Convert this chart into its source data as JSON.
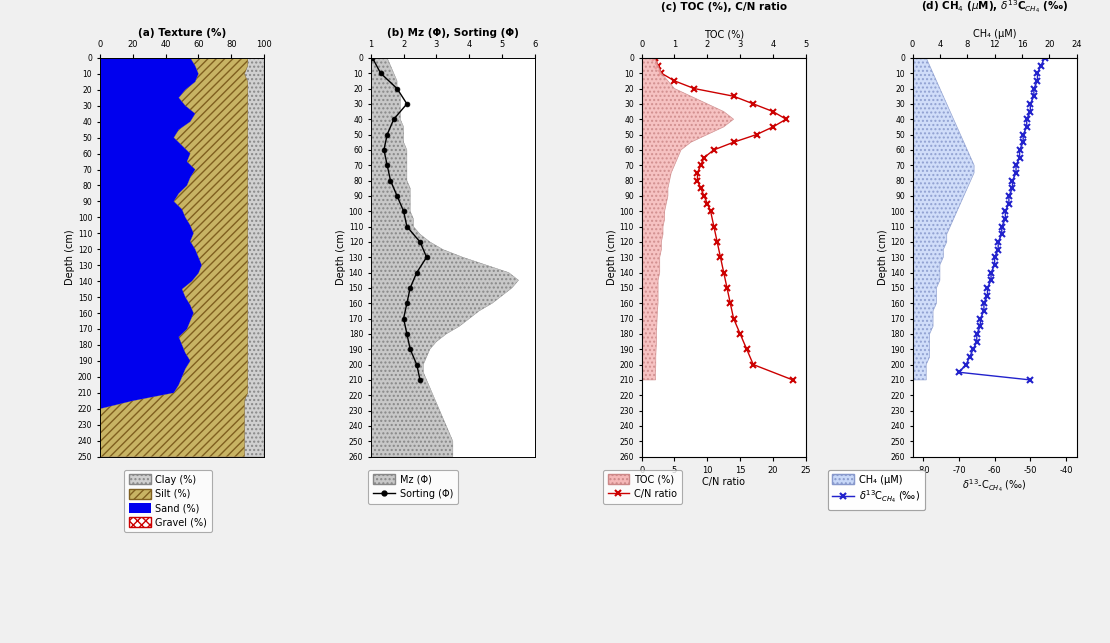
{
  "panel_a": {
    "title": "(a) Texture (%)",
    "depth_max": 250,
    "depth_ticks": [
      0,
      10,
      20,
      30,
      40,
      50,
      60,
      70,
      80,
      90,
      100,
      110,
      120,
      130,
      140,
      150,
      160,
      170,
      180,
      190,
      200,
      210,
      220,
      230,
      240,
      250
    ],
    "xlim": [
      0,
      100
    ],
    "xticks": [
      0,
      20,
      40,
      60,
      80,
      100
    ],
    "depth": [
      0,
      5,
      10,
      15,
      20,
      25,
      30,
      35,
      40,
      45,
      50,
      55,
      60,
      65,
      70,
      75,
      80,
      85,
      90,
      95,
      100,
      105,
      110,
      115,
      120,
      125,
      130,
      135,
      140,
      145,
      150,
      155,
      160,
      165,
      170,
      175,
      180,
      185,
      190,
      195,
      200,
      205,
      210,
      215,
      220,
      225,
      230,
      235,
      240,
      245,
      250
    ],
    "sand": [
      55,
      58,
      60,
      58,
      52,
      48,
      52,
      58,
      55,
      48,
      45,
      50,
      55,
      53,
      58,
      55,
      53,
      48,
      45,
      50,
      52,
      55,
      57,
      55,
      58,
      60,
      62,
      60,
      56,
      50,
      52,
      55,
      57,
      55,
      53,
      48,
      50,
      52,
      55,
      52,
      50,
      48,
      45,
      20,
      0,
      0,
      0,
      0,
      0,
      0,
      0
    ],
    "silt": [
      35,
      32,
      28,
      32,
      38,
      42,
      38,
      32,
      35,
      42,
      45,
      40,
      35,
      37,
      32,
      35,
      37,
      42,
      45,
      40,
      38,
      35,
      33,
      35,
      32,
      30,
      28,
      30,
      34,
      40,
      38,
      35,
      33,
      35,
      37,
      42,
      40,
      38,
      35,
      38,
      40,
      42,
      45,
      68,
      88,
      88,
      88,
      88,
      88,
      88,
      88
    ],
    "clay": [
      10,
      10,
      12,
      10,
      10,
      10,
      10,
      10,
      10,
      10,
      10,
      10,
      10,
      10,
      10,
      10,
      10,
      10,
      10,
      10,
      10,
      10,
      10,
      10,
      10,
      10,
      10,
      10,
      10,
      10,
      10,
      10,
      10,
      10,
      10,
      10,
      10,
      10,
      10,
      10,
      10,
      10,
      10,
      12,
      12,
      12,
      12,
      12,
      12,
      12,
      12
    ],
    "gravel": [
      0,
      0,
      0,
      0,
      0,
      0,
      0,
      0,
      0,
      0,
      0,
      0,
      0,
      0,
      0,
      0,
      0,
      0,
      0,
      0,
      0,
      0,
      0,
      0,
      0,
      0,
      0,
      0,
      0,
      0,
      0,
      0,
      0,
      0,
      0,
      0,
      0,
      0,
      0,
      0,
      0,
      0,
      0,
      0,
      0,
      0,
      0,
      0,
      0,
      0,
      0
    ],
    "sand_color": "#0000ee",
    "silt_color": "#c8b464",
    "clay_color": "#d0d0d0",
    "gravel_color": "#ffaaaa"
  },
  "panel_b": {
    "title": "(b) Mz (Φ), Sorting (Φ)",
    "depth_max": 260,
    "depth_ticks": [
      0,
      10,
      20,
      30,
      40,
      50,
      60,
      70,
      80,
      90,
      100,
      110,
      120,
      130,
      140,
      150,
      160,
      170,
      180,
      190,
      200,
      210,
      220,
      230,
      240,
      250,
      260
    ],
    "xlim": [
      1,
      6
    ],
    "xticks": [
      1,
      2,
      3,
      4,
      5,
      6
    ],
    "mz_depth": [
      0,
      5,
      10,
      15,
      20,
      25,
      30,
      35,
      40,
      45,
      50,
      55,
      60,
      65,
      70,
      75,
      80,
      85,
      90,
      95,
      100,
      105,
      110,
      115,
      120,
      125,
      130,
      135,
      140,
      145,
      150,
      155,
      160,
      165,
      170,
      175,
      180,
      185,
      190,
      195,
      200,
      205,
      210,
      215,
      220,
      225,
      230,
      235,
      240,
      245,
      250,
      255,
      260
    ],
    "mz": [
      1.5,
      1.6,
      1.7,
      1.8,
      1.8,
      1.9,
      1.9,
      1.9,
      1.9,
      2.0,
      2.0,
      2.0,
      2.1,
      2.1,
      2.1,
      2.1,
      2.1,
      2.2,
      2.2,
      2.2,
      2.2,
      2.3,
      2.3,
      2.5,
      2.8,
      3.2,
      3.8,
      4.5,
      5.2,
      5.5,
      5.3,
      5.0,
      4.7,
      4.3,
      4.0,
      3.7,
      3.3,
      3.0,
      2.8,
      2.7,
      2.6,
      2.6,
      2.7,
      2.8,
      2.9,
      3.0,
      3.1,
      3.2,
      3.3,
      3.4,
      3.5,
      3.5,
      3.5
    ],
    "sorting_depth": [
      0,
      10,
      20,
      30,
      40,
      50,
      60,
      70,
      80,
      90,
      100,
      110,
      120,
      130,
      140,
      150,
      160,
      170,
      180,
      190,
      200,
      210
    ],
    "sorting": [
      1.05,
      1.3,
      1.8,
      2.1,
      1.7,
      1.5,
      1.4,
      1.5,
      1.6,
      1.8,
      2.0,
      2.1,
      2.5,
      2.7,
      2.4,
      2.2,
      2.1,
      2.0,
      2.1,
      2.2,
      2.4,
      2.5
    ],
    "mz_color": "#c8c8c8",
    "sorting_color": "#000000"
  },
  "panel_c": {
    "title": "(c) TOC (%), C/N ratio",
    "subtitle_toc": "TOC (%)",
    "depth_max": 260,
    "depth_ticks": [
      0,
      10,
      20,
      30,
      40,
      50,
      60,
      70,
      80,
      90,
      100,
      110,
      120,
      130,
      140,
      150,
      160,
      170,
      180,
      190,
      200,
      210,
      220,
      230,
      240,
      250,
      260
    ],
    "toc_xlim": [
      0,
      5
    ],
    "toc_xticks": [
      0,
      1,
      2,
      3,
      4,
      5
    ],
    "cn_xlim": [
      0,
      25
    ],
    "cn_xticks": [
      0,
      5,
      10,
      15,
      20,
      25
    ],
    "toc_depth": [
      0,
      5,
      10,
      15,
      20,
      25,
      30,
      35,
      40,
      45,
      50,
      55,
      60,
      65,
      70,
      75,
      80,
      85,
      90,
      95,
      100,
      105,
      110,
      115,
      120,
      125,
      130,
      135,
      140,
      145,
      150,
      155,
      160,
      165,
      170,
      175,
      180,
      185,
      190,
      195,
      200,
      205,
      210
    ],
    "toc": [
      0.4,
      0.5,
      0.6,
      0.8,
      1.0,
      1.5,
      2.0,
      2.5,
      2.8,
      2.5,
      2.0,
      1.5,
      1.2,
      1.1,
      1.0,
      0.9,
      0.85,
      0.8,
      0.8,
      0.75,
      0.7,
      0.7,
      0.65,
      0.65,
      0.6,
      0.6,
      0.55,
      0.55,
      0.55,
      0.5,
      0.5,
      0.5,
      0.5,
      0.48,
      0.47,
      0.46,
      0.45,
      0.45,
      0.44,
      0.43,
      0.43,
      0.42,
      0.42
    ],
    "cn_depth": [
      0,
      5,
      10,
      15,
      20,
      25,
      30,
      35,
      40,
      45,
      50,
      55,
      60,
      65,
      70,
      75,
      80,
      85,
      90,
      95,
      100,
      110,
      120,
      130,
      140,
      150,
      160,
      170,
      180,
      190,
      200,
      210
    ],
    "cn": [
      2.0,
      2.5,
      3.0,
      5.0,
      8.0,
      14.0,
      17.0,
      20.0,
      22.0,
      20.0,
      17.5,
      14.0,
      11.0,
      9.5,
      9.0,
      8.5,
      8.5,
      9.0,
      9.5,
      10.0,
      10.5,
      11.0,
      11.5,
      12.0,
      12.5,
      13.0,
      13.5,
      14.0,
      15.0,
      16.0,
      17.0,
      23.0
    ],
    "toc_color": "#f5b8b8",
    "cn_color": "#cc0000"
  },
  "panel_d": {
    "title_line1": "(d) CH₄ (μM), δ¹³Cₙₕ₄ (‰)",
    "title": "(d) CH₄ (μM), δ¹³C$_{CH_4}$ (‰)",
    "subtitle_ch4": "CH₄ (μM)",
    "depth_max": 260,
    "depth_ticks": [
      0,
      10,
      20,
      30,
      40,
      50,
      60,
      70,
      80,
      90,
      100,
      110,
      120,
      130,
      140,
      150,
      160,
      170,
      180,
      190,
      200,
      210,
      220,
      230,
      240,
      250,
      260
    ],
    "ch4_xlim": [
      0,
      24
    ],
    "ch4_xticks": [
      0,
      4,
      8,
      12,
      16,
      20,
      24
    ],
    "d13c_xlim": [
      -83,
      -37
    ],
    "d13c_xticks": [
      -80,
      -70,
      -60,
      -50,
      -40
    ],
    "ch4_depth": [
      0,
      5,
      10,
      15,
      20,
      25,
      30,
      35,
      40,
      45,
      50,
      55,
      60,
      65,
      70,
      75,
      80,
      85,
      90,
      95,
      100,
      105,
      110,
      115,
      120,
      125,
      130,
      135,
      140,
      145,
      150,
      155,
      160,
      165,
      170,
      175,
      180,
      185,
      190,
      195,
      200,
      205,
      210
    ],
    "ch4": [
      2,
      2.5,
      3,
      3.5,
      4,
      4.5,
      5,
      5.5,
      6,
      6.5,
      7,
      7.5,
      8,
      8.5,
      9,
      9,
      8.5,
      8,
      7.5,
      7,
      6.5,
      6,
      5.5,
      5,
      5,
      4.5,
      4.5,
      4,
      4,
      4,
      3.5,
      3.5,
      3.5,
      3,
      3,
      3,
      2.5,
      2.5,
      2.5,
      2.5,
      2,
      2,
      2
    ],
    "d13c_depth": [
      0,
      5,
      10,
      15,
      20,
      25,
      30,
      35,
      40,
      45,
      50,
      55,
      60,
      65,
      70,
      75,
      80,
      85,
      90,
      95,
      100,
      105,
      110,
      115,
      120,
      125,
      130,
      135,
      140,
      145,
      150,
      155,
      160,
      165,
      170,
      175,
      180,
      185,
      190,
      195,
      200,
      205,
      210
    ],
    "d13c": [
      -46,
      -47,
      -48,
      -48,
      -49,
      -49,
      -50,
      -50,
      -51,
      -51,
      -52,
      -52,
      -53,
      -53,
      -54,
      -54,
      -55,
      -55,
      -56,
      -56,
      -57,
      -57,
      -58,
      -58,
      -59,
      -59,
      -60,
      -60,
      -61,
      -61,
      -62,
      -62,
      -63,
      -63,
      -64,
      -64,
      -65,
      -65,
      -66,
      -67,
      -68,
      -70,
      -50
    ],
    "ch4_color": "#c8d8f8",
    "d13c_color": "#2222cc"
  },
  "bg_color": "#f0f0f0",
  "panel_bg": "#ffffff"
}
